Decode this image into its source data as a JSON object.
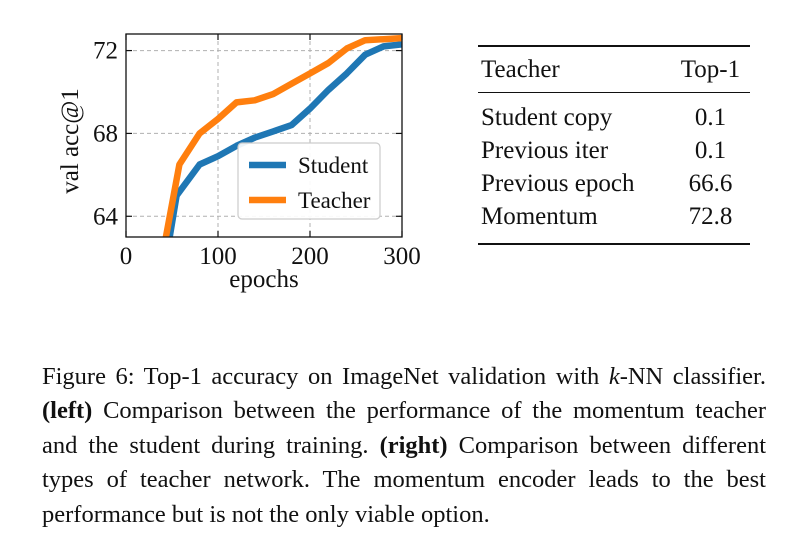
{
  "chart_data": {
    "type": "line",
    "xlabel": "epochs",
    "ylabel": "val acc@1",
    "xlim": [
      0,
      300
    ],
    "ylim": [
      63,
      72.8
    ],
    "xticks": [
      0,
      100,
      200,
      300
    ],
    "yticks": [
      64,
      68,
      72
    ],
    "grid": true,
    "legend_position": "lower-right",
    "series": [
      {
        "name": "Student",
        "color": "#1f77b4",
        "x": [
          40,
          55,
          80,
          100,
          120,
          140,
          160,
          180,
          200,
          220,
          240,
          260,
          280,
          300
        ],
        "y": [
          61.0,
          65.0,
          66.5,
          66.9,
          67.4,
          67.8,
          68.1,
          68.4,
          69.2,
          70.1,
          70.9,
          71.8,
          72.2,
          72.3
        ]
      },
      {
        "name": "Teacher",
        "color": "#ff7f0e",
        "x": [
          35,
          58,
          80,
          100,
          120,
          140,
          160,
          180,
          200,
          220,
          240,
          260,
          280,
          300
        ],
        "y": [
          61.0,
          66.5,
          68.0,
          68.7,
          69.5,
          69.6,
          69.9,
          70.4,
          70.9,
          71.4,
          72.1,
          72.5,
          72.55,
          72.6
        ]
      }
    ]
  },
  "table": {
    "header": [
      "Teacher",
      "Top-1"
    ],
    "rows": [
      {
        "label": "Student copy",
        "value": "0.1"
      },
      {
        "label": "Previous iter",
        "value": "0.1"
      },
      {
        "label": "Previous epoch",
        "value": "66.6"
      },
      {
        "label": "Momentum",
        "value": "72.8"
      }
    ]
  },
  "caption": {
    "prefix": "Figure 6: Top-1 accuracy on ImageNet validation with ",
    "k": "k",
    "mid1": "-NN classifier. ",
    "left_tag": "(left)",
    "mid2": " Comparison between the performance of the momentum teacher and the student during training. ",
    "right_tag": "(right)",
    "suffix": " Comparison between different types of teacher network. The momentum encoder leads to the best performance but is not the only viable option."
  }
}
